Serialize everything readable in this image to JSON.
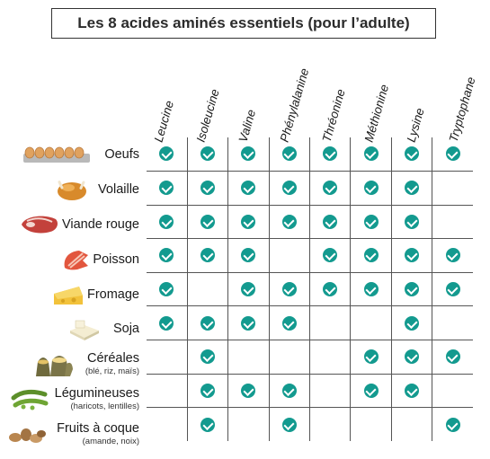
{
  "title": "Les 8 acides aminés essentiels (pour l’adulte)",
  "columns": [
    "Leucine",
    "Isoleucine",
    "Valine",
    "Phénylalanine",
    "Thréonine",
    "Méthionine",
    "Lysine",
    "Tryptophane"
  ],
  "rows": [
    {
      "name": "Oeufs",
      "sub": "",
      "icon": "eggs-carton-icon",
      "checks": [
        1,
        1,
        1,
        1,
        1,
        1,
        1,
        1
      ]
    },
    {
      "name": "Volaille",
      "sub": "",
      "icon": "roast-chicken-icon",
      "checks": [
        1,
        1,
        1,
        1,
        1,
        1,
        1,
        0
      ]
    },
    {
      "name": "Viande rouge",
      "sub": "",
      "icon": "red-meat-icon",
      "checks": [
        1,
        1,
        1,
        1,
        1,
        1,
        1,
        0
      ]
    },
    {
      "name": "Poisson",
      "sub": "",
      "icon": "fish-icon",
      "checks": [
        1,
        1,
        1,
        0,
        1,
        1,
        1,
        1
      ]
    },
    {
      "name": "Fromage",
      "sub": "",
      "icon": "cheese-icon",
      "checks": [
        1,
        0,
        1,
        1,
        1,
        1,
        1,
        1
      ]
    },
    {
      "name": "Soja",
      "sub": "",
      "icon": "tofu-icon",
      "checks": [
        1,
        1,
        1,
        1,
        0,
        0,
        1,
        0
      ]
    },
    {
      "name": "Céréales",
      "sub": "(blé, riz, maïs)",
      "icon": "grain-sacks-icon",
      "checks": [
        0,
        1,
        0,
        0,
        0,
        1,
        1,
        1
      ]
    },
    {
      "name": "Légumineuses",
      "sub": "(haricots, lentilles)",
      "icon": "beans-icon",
      "checks": [
        0,
        1,
        1,
        1,
        0,
        1,
        1,
        0
      ]
    },
    {
      "name": "Fruits à coque",
      "sub": "(amande, noix)",
      "icon": "nuts-icon",
      "checks": [
        0,
        1,
        0,
        1,
        0,
        0,
        0,
        1
      ]
    }
  ],
  "colors": {
    "check": "#139a8f",
    "grid": "#555555"
  }
}
